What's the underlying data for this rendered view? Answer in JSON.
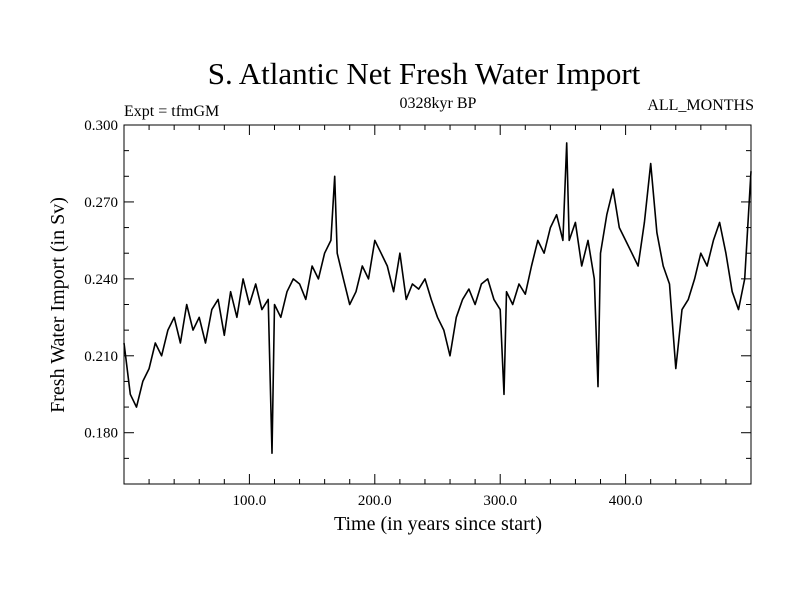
{
  "chart_data": {
    "type": "line",
    "title": "S. Atlantic Net Fresh Water Import",
    "subtitle_left": "Expt = tfmGM",
    "subtitle_center": "0328kyr BP",
    "subtitle_right": "ALL_MONTHS",
    "xlabel": "Time (in years since start)",
    "ylabel": "Fresh Water Import (in Sv)",
    "xlim": [
      0,
      500
    ],
    "ylim": [
      0.16,
      0.3
    ],
    "xticks_major": [
      100,
      200,
      300,
      400
    ],
    "xtick_labels": [
      "100.0",
      "200.0",
      "300.0",
      "400.0"
    ],
    "yticks_major": [
      0.18,
      0.21,
      0.24,
      0.27,
      0.3
    ],
    "ytick_labels": [
      "0.180",
      "0.210",
      "0.240",
      "0.270",
      "0.300"
    ],
    "grid": false,
    "series": [
      {
        "x": [
          0,
          5,
          10,
          15,
          20,
          25,
          30,
          35,
          40,
          45,
          50,
          55,
          60,
          65,
          70,
          75,
          80,
          85,
          90,
          95,
          100,
          105,
          110,
          115,
          118,
          120,
          125,
          130,
          135,
          140,
          145,
          150,
          155,
          160,
          165,
          168,
          170,
          175,
          180,
          185,
          190,
          195,
          200,
          205,
          210,
          215,
          220,
          225,
          230,
          235,
          240,
          245,
          250,
          255,
          260,
          265,
          270,
          275,
          280,
          285,
          290,
          295,
          300,
          303,
          305,
          310,
          315,
          320,
          325,
          330,
          335,
          340,
          345,
          350,
          353,
          355,
          360,
          365,
          370,
          375,
          378,
          380,
          385,
          390,
          395,
          400,
          405,
          410,
          415,
          420,
          425,
          430,
          435,
          440,
          445,
          450,
          455,
          460,
          465,
          470,
          475,
          480,
          485,
          490,
          495,
          500
        ],
        "y": [
          0.215,
          0.195,
          0.19,
          0.2,
          0.205,
          0.215,
          0.21,
          0.22,
          0.225,
          0.215,
          0.23,
          0.22,
          0.225,
          0.215,
          0.228,
          0.232,
          0.218,
          0.235,
          0.225,
          0.24,
          0.23,
          0.238,
          0.228,
          0.232,
          0.172,
          0.23,
          0.225,
          0.235,
          0.24,
          0.238,
          0.232,
          0.245,
          0.24,
          0.25,
          0.255,
          0.28,
          0.25,
          0.24,
          0.23,
          0.235,
          0.245,
          0.24,
          0.255,
          0.25,
          0.245,
          0.235,
          0.25,
          0.232,
          0.238,
          0.236,
          0.24,
          0.232,
          0.225,
          0.22,
          0.21,
          0.225,
          0.232,
          0.236,
          0.23,
          0.238,
          0.24,
          0.232,
          0.228,
          0.195,
          0.235,
          0.23,
          0.238,
          0.234,
          0.245,
          0.255,
          0.25,
          0.26,
          0.265,
          0.255,
          0.293,
          0.255,
          0.262,
          0.245,
          0.255,
          0.24,
          0.198,
          0.25,
          0.265,
          0.275,
          0.26,
          0.255,
          0.25,
          0.245,
          0.262,
          0.285,
          0.258,
          0.245,
          0.238,
          0.205,
          0.228,
          0.232,
          0.24,
          0.25,
          0.245,
          0.255,
          0.262,
          0.25,
          0.235,
          0.228,
          0.24,
          0.282
        ]
      }
    ]
  }
}
